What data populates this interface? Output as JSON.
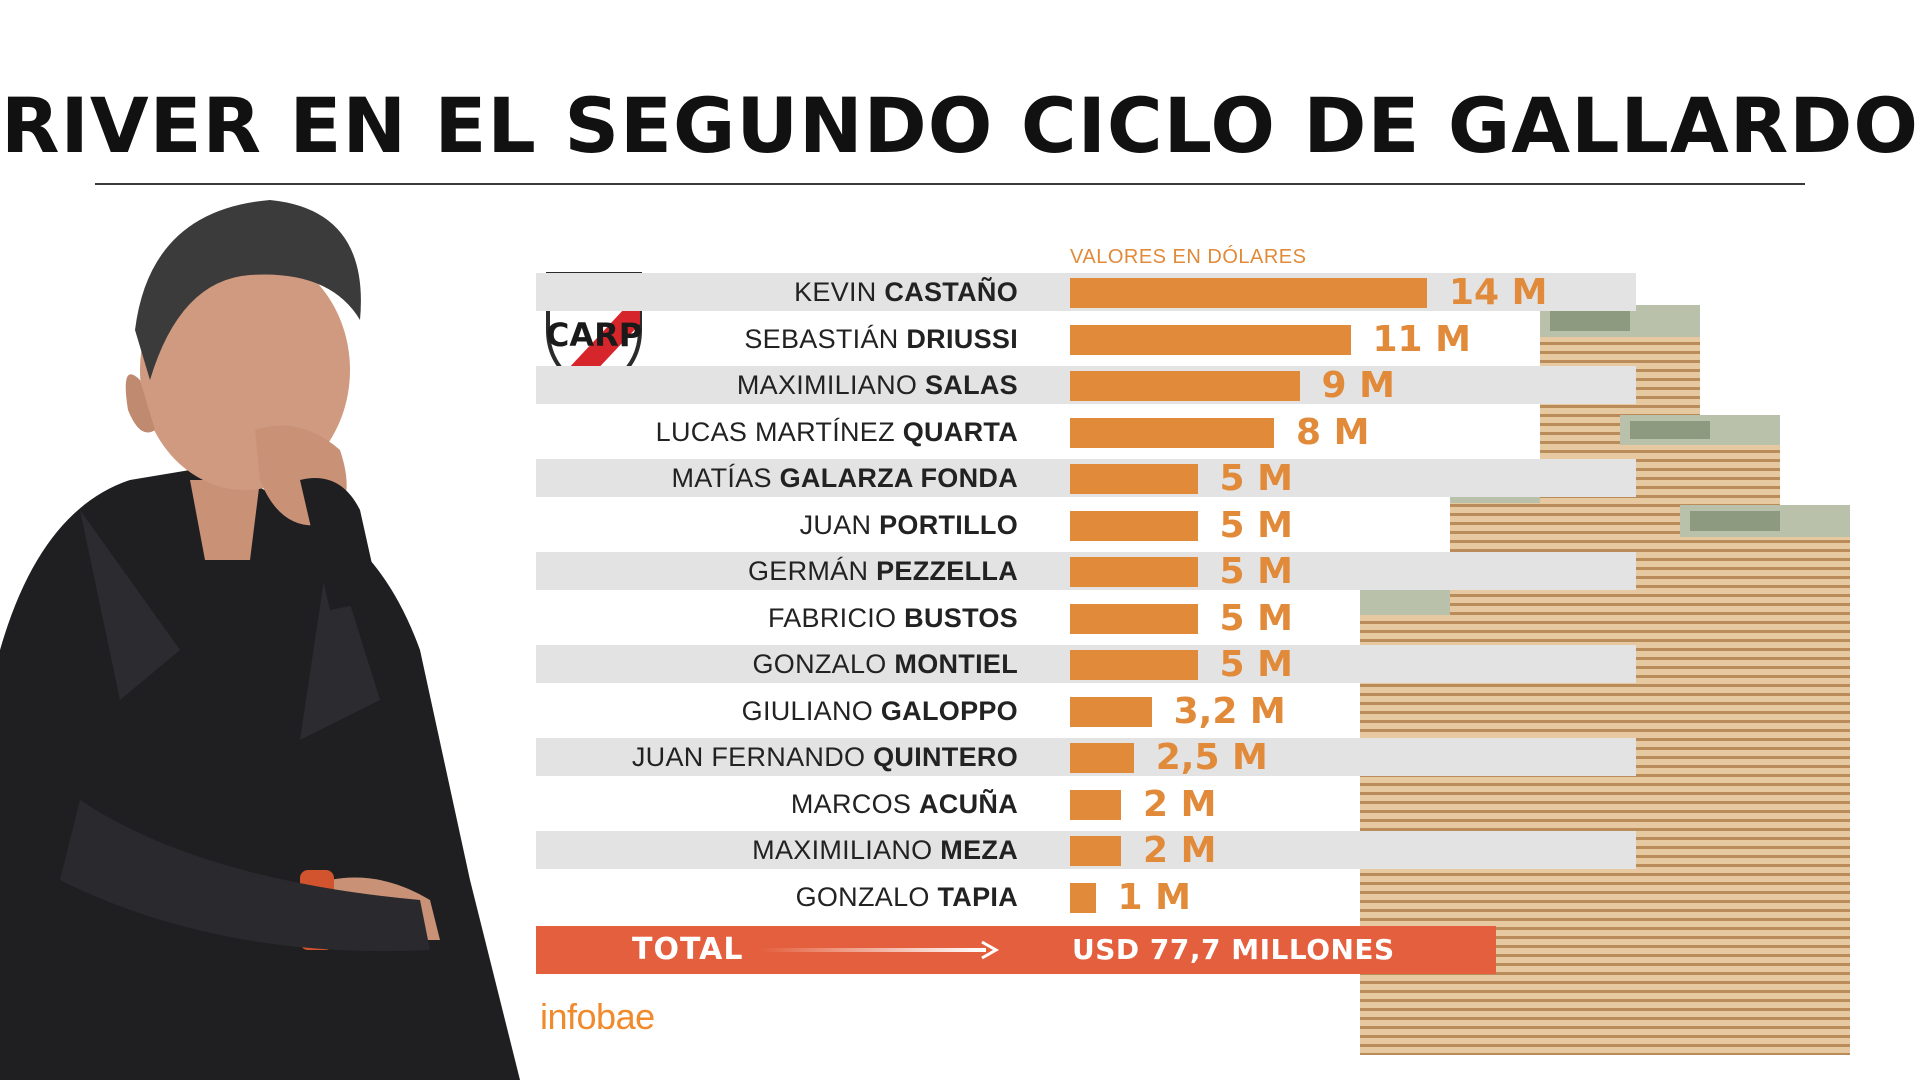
{
  "title": "RIVER EN EL SEGUNDO CICLO DE GALLARDO",
  "subtitle": "VALORES EN DÓLARES",
  "colors": {
    "bar": "#e08a3a",
    "total": "#e35f3d",
    "shade": "#e3e3e3",
    "brand": "#f08a2c"
  },
  "icons": [
    "river-plate-crest-icon",
    "money-stacks-icon",
    "arrow-right-icon"
  ],
  "chart_data": {
    "type": "bar",
    "orientation": "horizontal",
    "unit": "millones de dólares",
    "rows": [
      {
        "first": "KEVIN ",
        "last": "CASTAÑO",
        "value": 14,
        "label": "14 M"
      },
      {
        "first": "SEBASTIÁN ",
        "last": "DRIUSSI",
        "value": 11,
        "label": "11 M"
      },
      {
        "first": "MAXIMILIANO ",
        "last": "SALAS",
        "value": 9,
        "label": "9 M"
      },
      {
        "first": "LUCAS MARTÍNEZ ",
        "last": "QUARTA",
        "value": 8,
        "label": "8 M"
      },
      {
        "first": "MATÍAS ",
        "last": "GALARZA FONDA",
        "value": 5,
        "label": "5 M"
      },
      {
        "first": "JUAN ",
        "last": "PORTILLO",
        "value": 5,
        "label": "5 M"
      },
      {
        "first": "GERMÁN ",
        "last": "PEZZELLA",
        "value": 5,
        "label": "5 M"
      },
      {
        "first": "FABRICIO ",
        "last": "BUSTOS",
        "value": 5,
        "label": "5 M"
      },
      {
        "first": "GONZALO ",
        "last": "MONTIEL",
        "value": 5,
        "label": "5 M"
      },
      {
        "first": "GIULIANO ",
        "last": "GALOPPO",
        "value": 3.2,
        "label": "3,2 M"
      },
      {
        "first": "JUAN FERNANDO ",
        "last": "QUINTERO",
        "value": 2.5,
        "label": "2,5 M"
      },
      {
        "first": "MARCOS ",
        "last": "ACUÑA",
        "value": 2,
        "label": "2 M"
      },
      {
        "first": "MAXIMILIANO ",
        "last": "MEZA",
        "value": 2,
        "label": "2 M"
      },
      {
        "first": "GONZALO ",
        "last": "TAPIA",
        "value": 1,
        "label": "1 M"
      }
    ],
    "total_label": "TOTAL",
    "total_value": "USD 77,7 MILLONES"
  },
  "brand": "infobae"
}
